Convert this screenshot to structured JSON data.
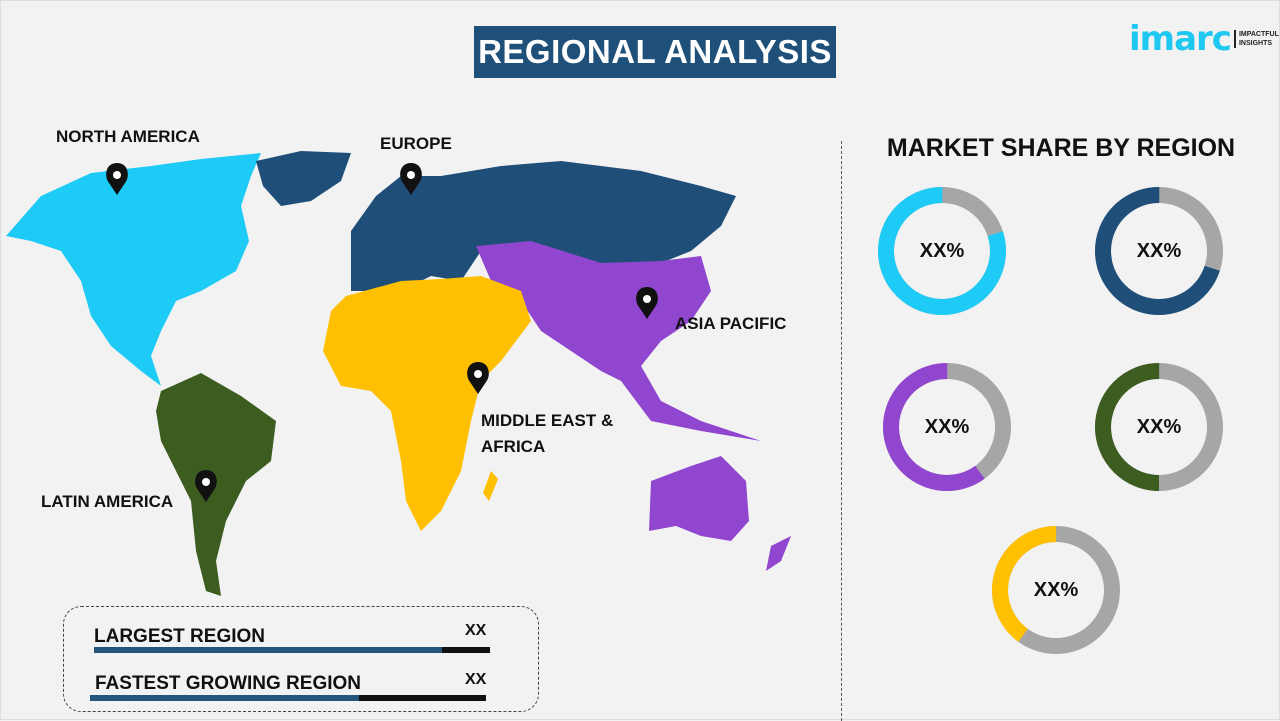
{
  "header": {
    "title": "REGIONAL ANALYSIS",
    "logo": {
      "word": "imarc",
      "tagline": "IMPACTFUL INSIGHTS"
    }
  },
  "map": {
    "regions": [
      {
        "name": "NORTH AMERICA",
        "color": "#1ecbf6"
      },
      {
        "name": "EUROPE",
        "color": "#1f4e79"
      },
      {
        "name": "ASIA PACIFIC",
        "color": "#9146cf"
      },
      {
        "name": "MIDDLE EAST & AFRICA",
        "color": "#fec001"
      },
      {
        "name": "LATIN AMERICA",
        "color": "#3c5c20"
      }
    ],
    "marker_icon": "map-pin-icon"
  },
  "summary": {
    "largest": {
      "label": "LARGEST REGION",
      "value": "XX",
      "fill": 0.88
    },
    "fastest": {
      "label": "FASTEST GROWING REGION",
      "value": "XX",
      "fill": 0.68
    }
  },
  "share": {
    "title": "MARKET SHARE BY REGION",
    "remainder_color": "#a6a6a6",
    "donuts": [
      {
        "label": "XX%",
        "color": "#1ecbf6",
        "fraction": 0.8
      },
      {
        "label": "XX%",
        "color": "#1f4e79",
        "fraction": 0.7
      },
      {
        "label": "XX%",
        "color": "#9146cf",
        "fraction": 0.6
      },
      {
        "label": "XX%",
        "color": "#3c5c20",
        "fraction": 0.5
      },
      {
        "label": "XX%",
        "color": "#fec001",
        "fraction": 0.4
      }
    ]
  }
}
